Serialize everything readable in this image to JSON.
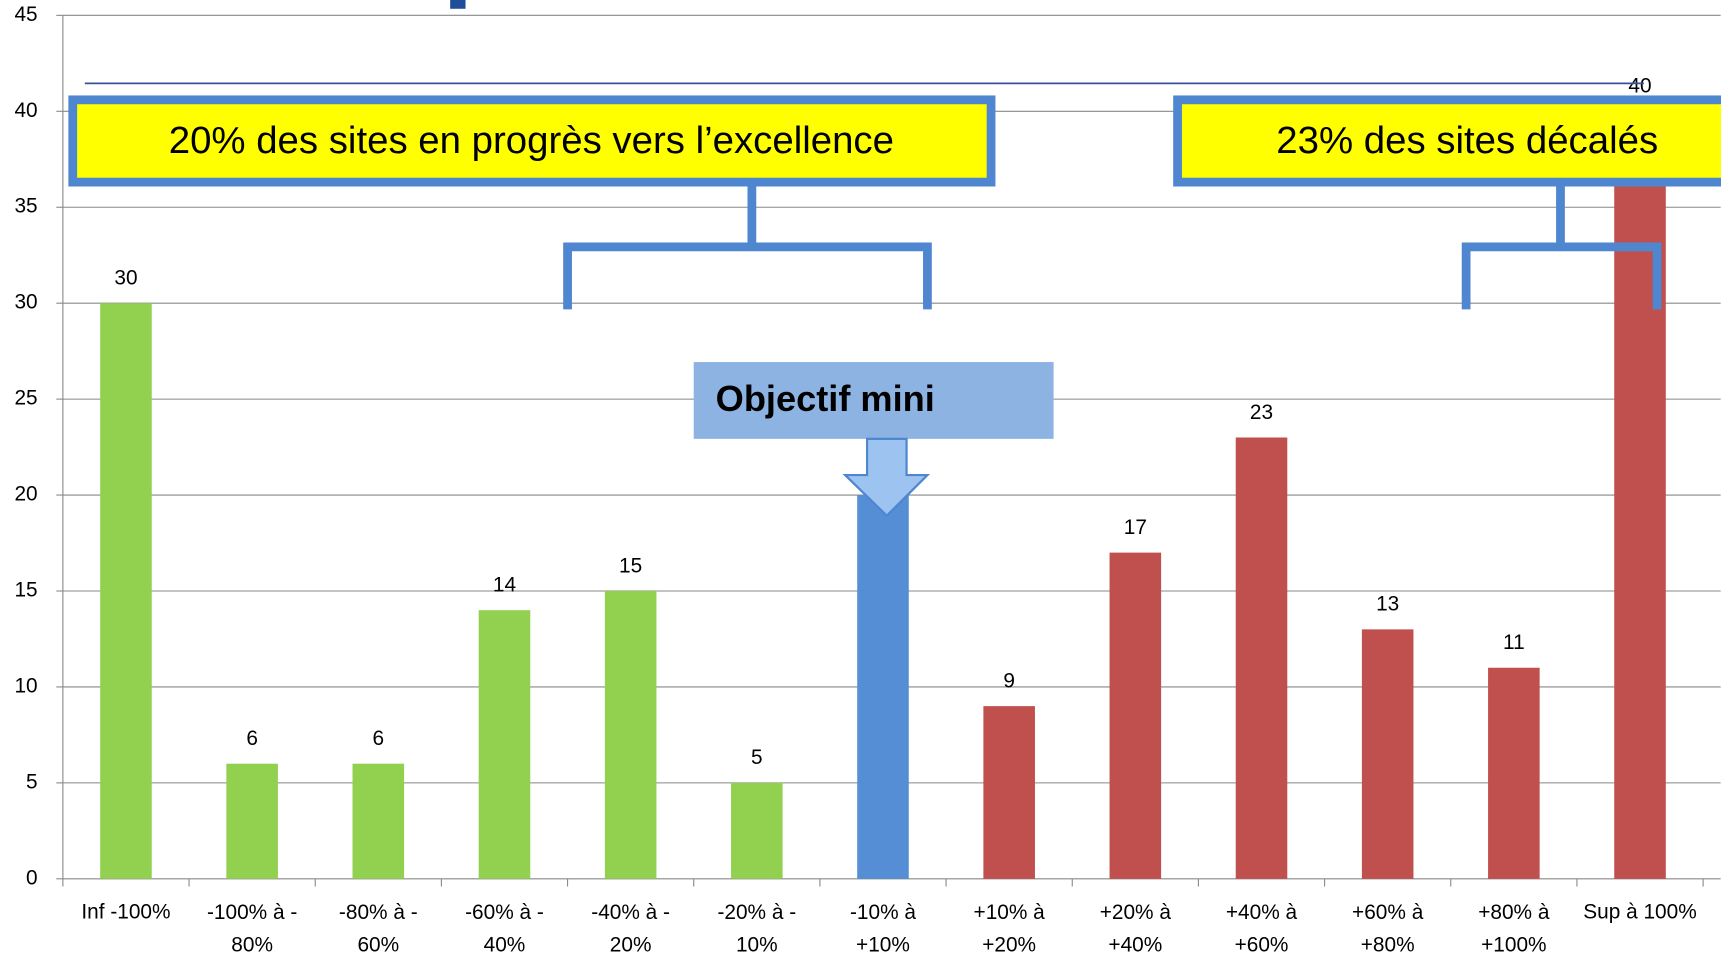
{
  "chart_data": {
    "type": "bar",
    "categories": [
      "Inf -100%",
      "-100% à -\n80%",
      "-80% à -\n60%",
      "-60% à -\n40%",
      "-40% à -\n20%",
      "-20% à -\n10%",
      "-10% à\n+10%",
      "+10% à\n+20%",
      "+20% à\n+40%",
      "+40% à\n+60%",
      "+60% à\n+80%",
      "+80% à\n+100%",
      "Sup à 100%"
    ],
    "values": [
      30,
      6,
      6,
      14,
      15,
      5,
      20,
      9,
      17,
      23,
      13,
      11,
      40
    ],
    "colors": [
      "#92d050",
      "#92d050",
      "#92d050",
      "#92d050",
      "#92d050",
      "#92d050",
      "#558ed5",
      "#c0504d",
      "#c0504d",
      "#c0504d",
      "#c0504d",
      "#c0504d",
      "#c0504d"
    ],
    "ylim": [
      0,
      45
    ],
    "yticks": [
      0,
      5,
      10,
      15,
      20,
      25,
      30,
      35,
      40,
      45
    ],
    "grid": true,
    "annotations": [
      "20% des sites en progrès vers l’excellence",
      "23% des sites décalés",
      "Objectif mini"
    ]
  }
}
